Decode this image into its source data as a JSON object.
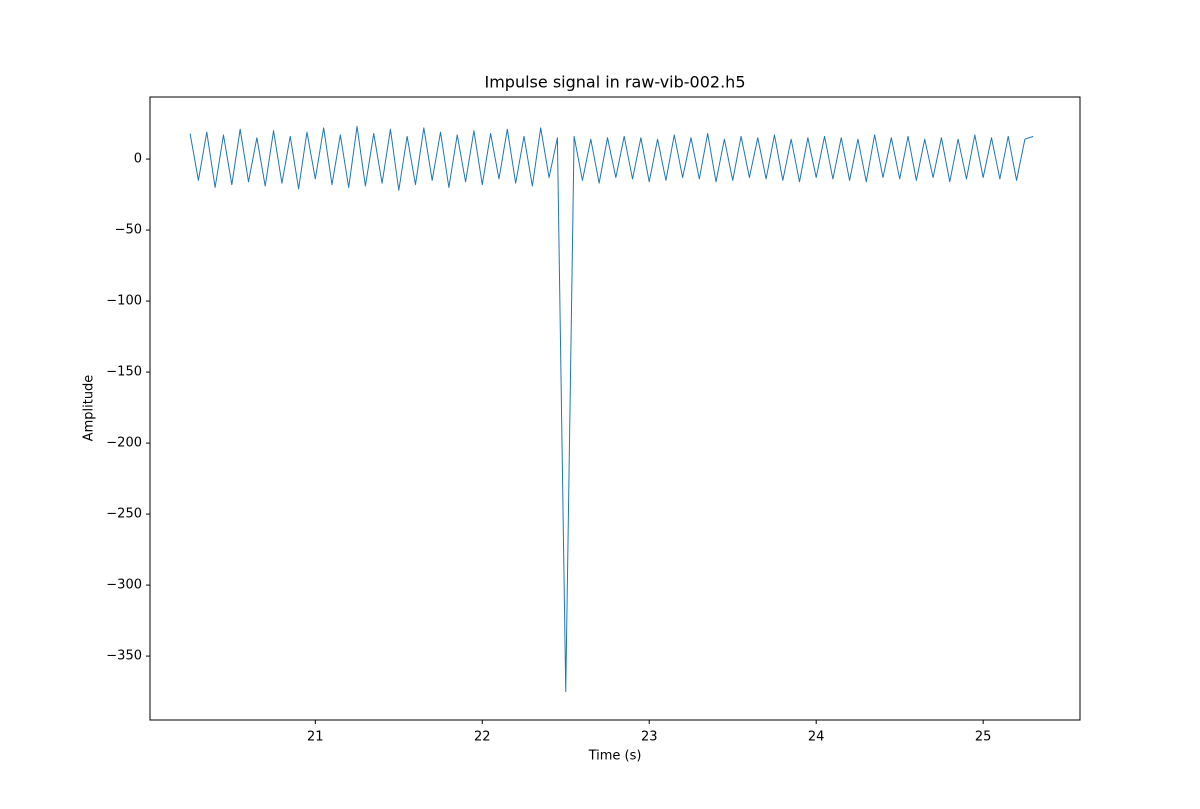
{
  "chart_data": {
    "type": "line",
    "title": "Impulse signal in raw-vib-002.h5",
    "x_label": "Time (s)",
    "y_label": "Amplitude",
    "x": [
      20.25,
      20.3,
      20.35,
      20.4,
      20.45,
      20.5,
      20.55,
      20.6,
      20.65,
      20.7,
      20.75,
      20.8,
      20.85,
      20.9,
      20.95,
      21,
      21.05,
      21.1,
      21.15,
      21.2,
      21.25,
      21.3,
      21.35,
      21.4,
      21.45,
      21.5,
      21.55,
      21.6,
      21.65,
      21.7,
      21.75,
      21.8,
      21.85,
      21.9,
      21.95,
      22,
      22.05,
      22.1,
      22.15,
      22.2,
      22.25,
      22.3,
      22.35,
      22.4,
      22.45,
      22.5,
      22.55,
      22.6,
      22.65,
      22.7,
      22.75,
      22.8,
      22.85,
      22.9,
      22.95,
      23,
      23.05,
      23.1,
      23.15,
      23.2,
      23.25,
      23.3,
      23.35,
      23.4,
      23.45,
      23.5,
      23.55,
      23.6,
      23.65,
      23.7,
      23.75,
      23.8,
      23.85,
      23.9,
      23.95,
      24,
      24.05,
      24.1,
      24.15,
      24.2,
      24.25,
      24.3,
      24.35,
      24.4,
      24.45,
      24.5,
      24.55,
      24.6,
      24.65,
      24.7,
      24.75,
      24.8,
      24.85,
      24.9,
      24.95,
      25,
      25.05,
      25.1,
      25.15,
      25.2,
      25.25,
      25.3
    ],
    "series": [
      {
        "name": "Amplitude",
        "color": "#1f77b4",
        "values": [
          18,
          -15,
          19,
          -20,
          17,
          -18,
          21,
          -16,
          15,
          -19,
          20,
          -17,
          16,
          -21,
          19,
          -14,
          22,
          -18,
          17,
          -20,
          23,
          -19,
          18,
          -17,
          21,
          -22,
          16,
          -18,
          22,
          -15,
          19,
          -20,
          17,
          -16,
          20,
          -18,
          18,
          -14,
          21,
          -17,
          16,
          -19,
          22,
          -13,
          15,
          -375,
          16,
          -15,
          14,
          -17,
          15,
          -13,
          16,
          -14,
          15,
          -16,
          14,
          -15,
          17,
          -13,
          15,
          -14,
          18,
          -16,
          14,
          -15,
          16,
          -13,
          15,
          -14,
          17,
          -15,
          14,
          -16,
          15,
          -13,
          16,
          -14,
          15,
          -15,
          14,
          -16,
          17,
          -13,
          15,
          -14,
          16,
          -15,
          14,
          -13,
          15,
          -16,
          14,
          -14,
          17,
          -13,
          15,
          -14,
          16,
          -15,
          14,
          16
        ]
      }
    ],
    "xlim": [
      20.01,
      25.58
    ],
    "ylim": [
      -395,
      43.7
    ],
    "xticks": [
      21,
      22,
      23,
      24,
      25
    ],
    "yticks": [
      0,
      {
        "value": -50,
        "label": "−50"
      },
      {
        "value": -100,
        "label": "−100"
      },
      {
        "value": -150,
        "label": "−150"
      },
      {
        "value": -200,
        "label": "−200"
      },
      {
        "value": -250,
        "label": "−250"
      },
      {
        "value": -300,
        "label": "−300"
      },
      {
        "value": -350,
        "label": "−350"
      }
    ],
    "grid": false
  }
}
